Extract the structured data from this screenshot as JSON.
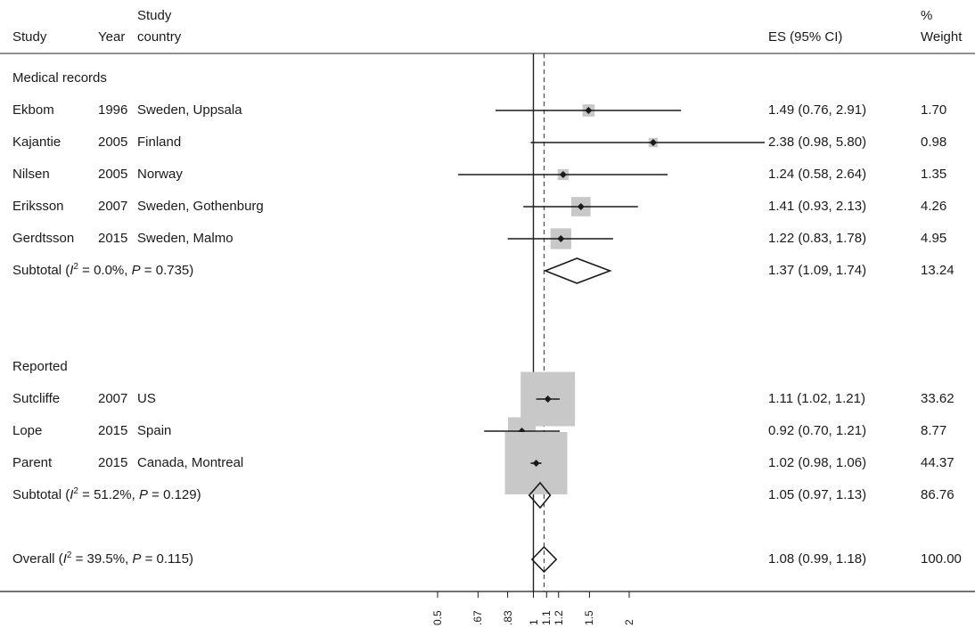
{
  "headers": {
    "study": "Study",
    "year": "Year",
    "country": [
      "Study",
      "country"
    ],
    "es": "ES (95% CI)",
    "weight": [
      "%",
      "Weight"
    ]
  },
  "chart_data": {
    "type": "forest",
    "xscale": "log",
    "xlim": [
      0.5,
      2
    ],
    "ticks": [
      0.5,
      0.67,
      0.83,
      1,
      1.1,
      1.2,
      1.5,
      2
    ],
    "tick_labels": [
      "0.5",
      ".67",
      ".83",
      "1",
      "1.1",
      "1.2",
      "1.5",
      "2"
    ],
    "null_line": 1,
    "overall_line": 1.08,
    "groups": [
      {
        "title": "Medical records",
        "studies": [
          {
            "study": "Ekbom",
            "year": "1996",
            "country": "Sweden, Uppsala",
            "es": 1.49,
            "lo": 0.76,
            "hi": 2.91,
            "es_text": "1.49 (0.76, 2.91)",
            "weight": 1.7,
            "weight_text": "1.70"
          },
          {
            "study": "Kajantie",
            "year": "2005",
            "country": "Finland",
            "es": 2.38,
            "lo": 0.98,
            "hi": 5.8,
            "es_text": "2.38 (0.98, 5.80)",
            "weight": 0.98,
            "weight_text": "0.98"
          },
          {
            "study": "Nilsen",
            "year": "2005",
            "country": "Norway",
            "es": 1.24,
            "lo": 0.58,
            "hi": 2.64,
            "es_text": "1.24 (0.58, 2.64)",
            "weight": 1.35,
            "weight_text": "1.35"
          },
          {
            "study": "Eriksson",
            "year": "2007",
            "country": "Sweden, Gothenburg",
            "es": 1.41,
            "lo": 0.93,
            "hi": 2.13,
            "es_text": "1.41 (0.93, 2.13)",
            "weight": 4.26,
            "weight_text": "4.26"
          },
          {
            "study": "Gerdtsson",
            "year": "2015",
            "country": "Sweden, Malmo",
            "es": 1.22,
            "lo": 0.83,
            "hi": 1.78,
            "es_text": "1.22 (0.83, 1.78)",
            "weight": 4.95,
            "weight_text": "4.95"
          }
        ],
        "subtotal": {
          "i2": "0.0%",
          "p": "0.735",
          "es": 1.37,
          "lo": 1.09,
          "hi": 1.74,
          "es_text": "1.37 (1.09, 1.74)",
          "weight_text": "13.24"
        }
      },
      {
        "title": "Reported",
        "studies": [
          {
            "study": "Sutcliffe",
            "year": "2007",
            "country": "US",
            "es": 1.11,
            "lo": 1.02,
            "hi": 1.21,
            "es_text": "1.11 (1.02, 1.21)",
            "weight": 33.62,
            "weight_text": "33.62"
          },
          {
            "study": "Lope",
            "year": "2015",
            "country": "Spain",
            "es": 0.92,
            "lo": 0.7,
            "hi": 1.21,
            "es_text": "0.92 (0.70, 1.21)",
            "weight": 8.77,
            "weight_text": "8.77"
          },
          {
            "study": "Parent",
            "year": "2015",
            "country": "Canada, Montreal",
            "es": 1.02,
            "lo": 0.98,
            "hi": 1.06,
            "es_text": "1.02 (0.98, 1.06)",
            "weight": 44.37,
            "weight_text": "44.37"
          }
        ],
        "subtotal": {
          "i2": "51.2%",
          "p": "0.129",
          "es": 1.05,
          "lo": 0.97,
          "hi": 1.13,
          "es_text": "1.05 (0.97, 1.13)",
          "weight_text": "86.76"
        }
      }
    ],
    "overall": {
      "i2": "39.5%",
      "p": "0.115",
      "es": 1.08,
      "lo": 0.99,
      "hi": 1.18,
      "es_text": "1.08 (0.99, 1.18)",
      "weight_text": "100.00"
    }
  },
  "labels": {
    "subtotal_prefix": "Subtotal",
    "overall_prefix": "Overall",
    "i_letter": "I",
    "sup2": "2",
    "p_letter": "P",
    "open_paren": " (",
    "eq": " = ",
    "comma": ", ",
    "close_paren": ")"
  }
}
